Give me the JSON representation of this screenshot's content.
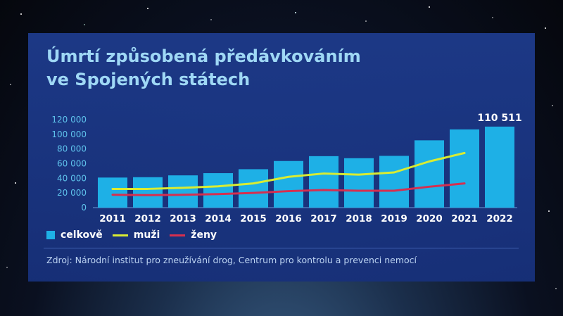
{
  "title_line1": "Úmrtí způsobená předávkováním",
  "title_line2": "ve Spojených státech",
  "source": "Zdroj: Národní institut pro zneužívání drog, Centrum pro kontrolu a prevenci nemocí",
  "colors": {
    "bar": "#1eb0e6",
    "men": "#d9ec32",
    "women": "#d62f4f",
    "axis_text": "#5fc3ec"
  },
  "chart_data": {
    "type": "bar",
    "categories": [
      "2011",
      "2012",
      "2013",
      "2014",
      "2015",
      "2016",
      "2017",
      "2018",
      "2019",
      "2020",
      "2021",
      "2022"
    ],
    "ylim": [
      0,
      120000
    ],
    "yticks": [
      {
        "value": 0,
        "label": "0"
      },
      {
        "value": 20000,
        "label": "20 000"
      },
      {
        "value": 40000,
        "label": "40 000"
      },
      {
        "value": 60000,
        "label": "60 000"
      },
      {
        "value": 80000,
        "label": "80 000"
      },
      {
        "value": 100000,
        "label": "100 000"
      },
      {
        "value": 120000,
        "label": "120 000"
      }
    ],
    "series": [
      {
        "name": "celkově",
        "kind": "bar",
        "values": [
          41000,
          41500,
          44000,
          47000,
          52400,
          63600,
          70200,
          67400,
          70600,
          91800,
          106700,
          110511
        ]
      },
      {
        "name": "muži",
        "kind": "line",
        "values": [
          25500,
          25500,
          27000,
          29000,
          33000,
          42000,
          46500,
          45000,
          48000,
          63000,
          74500,
          null
        ]
      },
      {
        "name": "ženy",
        "kind": "line",
        "values": [
          17500,
          17000,
          17500,
          18500,
          20000,
          22500,
          24000,
          23000,
          23000,
          28500,
          33000,
          null
        ]
      }
    ],
    "annotations": [
      {
        "index": 11,
        "label": "110 511"
      }
    ]
  }
}
